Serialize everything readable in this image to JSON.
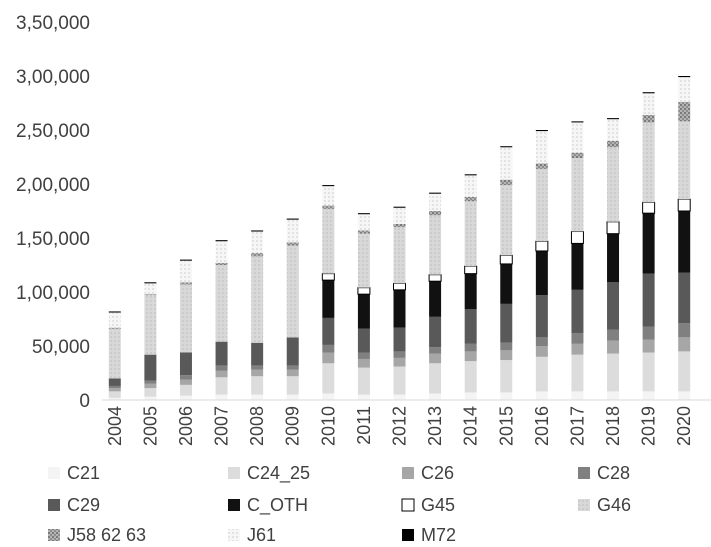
{
  "chart_data": {
    "type": "bar",
    "stacked": true,
    "ylim": [
      0,
      350000
    ],
    "yticks": [
      "0",
      "50,000",
      "1,00,000",
      "1,50,000",
      "2,00,000",
      "2,50,000",
      "3,00,000",
      "3,50,000"
    ],
    "ytick_values": [
      0,
      50000,
      100000,
      150000,
      200000,
      250000,
      300000,
      350000
    ],
    "categories": [
      "2004",
      "2005",
      "2006",
      "2007",
      "2008",
      "2009",
      "2010",
      "2011",
      "2012",
      "2013",
      "2014",
      "2015",
      "2016",
      "2017",
      "2018",
      "2019",
      "2020"
    ],
    "legend_position": "bottom",
    "series": [
      {
        "name": "C21",
        "color": "#f4f4f4",
        "values": [
          2000,
          3000,
          4000,
          5000,
          5000,
          5000,
          6000,
          5000,
          5000,
          6000,
          7000,
          7000,
          8000,
          8000,
          8000,
          8000,
          8000
        ]
      },
      {
        "name": "C24_25",
        "color": "#dcdcdc",
        "values": [
          6000,
          8000,
          10000,
          16000,
          17000,
          17000,
          28000,
          25000,
          26000,
          28000,
          29000,
          30000,
          32000,
          34000,
          35000,
          36000,
          37000
        ]
      },
      {
        "name": "C26",
        "color": "#a6a6a6",
        "values": [
          3000,
          4000,
          5000,
          6000,
          6000,
          6000,
          10000,
          8000,
          8000,
          9000,
          9000,
          9000,
          10000,
          10000,
          12000,
          12000,
          13000
        ]
      },
      {
        "name": "C28",
        "color": "#808080",
        "values": [
          2000,
          3000,
          4000,
          5000,
          4000,
          4000,
          7000,
          6000,
          6000,
          6000,
          7000,
          7000,
          8000,
          10000,
          10000,
          12000,
          13000
        ]
      },
      {
        "name": "C29",
        "color": "#595959",
        "values": [
          7000,
          24000,
          21000,
          22000,
          21000,
          26000,
          25000,
          22000,
          22000,
          28000,
          32000,
          36000,
          39000,
          40000,
          44000,
          49000,
          47000
        ]
      },
      {
        "name": "C_OTH",
        "color": "#111111",
        "values": [
          0,
          0,
          0,
          0,
          0,
          0,
          35000,
          32000,
          35000,
          33000,
          33000,
          37000,
          41000,
          43000,
          45000,
          56000,
          57000
        ]
      },
      {
        "name": "G45",
        "color": "#ffffff",
        "values": [
          0,
          0,
          0,
          0,
          0,
          0,
          6000,
          6000,
          6000,
          6000,
          7000,
          8000,
          9000,
          11000,
          11000,
          10000,
          11000
        ]
      },
      {
        "name": "G46",
        "color": "#d0d0d0",
        "values": [
          46000,
          55000,
          63000,
          71000,
          80000,
          85000,
          60000,
          50000,
          52000,
          55000,
          60000,
          65000,
          67000,
          68000,
          69000,
          74000,
          72000
        ]
      },
      {
        "name": "J58_62_63",
        "color": "#a0a0a0",
        "values": [
          1000,
          1000,
          2000,
          2000,
          3000,
          3000,
          3000,
          3000,
          3000,
          4000,
          4000,
          5000,
          5000,
          5000,
          6000,
          7000,
          18000
        ]
      },
      {
        "name": "J61",
        "color": "#ececec",
        "values": [
          14000,
          10000,
          20000,
          20000,
          20000,
          21000,
          18000,
          15000,
          15000,
          16000,
          20000,
          30000,
          30000,
          28000,
          20000,
          20000,
          23000
        ]
      },
      {
        "name": "M72",
        "color": "#000000",
        "values": [
          1000,
          1000,
          1000,
          1000,
          1000,
          1000,
          1000,
          1000,
          1000,
          1000,
          1000,
          1000,
          1000,
          1000,
          1000,
          1000,
          1000
        ]
      }
    ],
    "legend_labels": [
      "C21",
      "C24_25",
      "C26",
      "C28",
      "C29",
      "C_OTH",
      "G45",
      "G46",
      "J58  62  63",
      "J61",
      "M72"
    ]
  }
}
